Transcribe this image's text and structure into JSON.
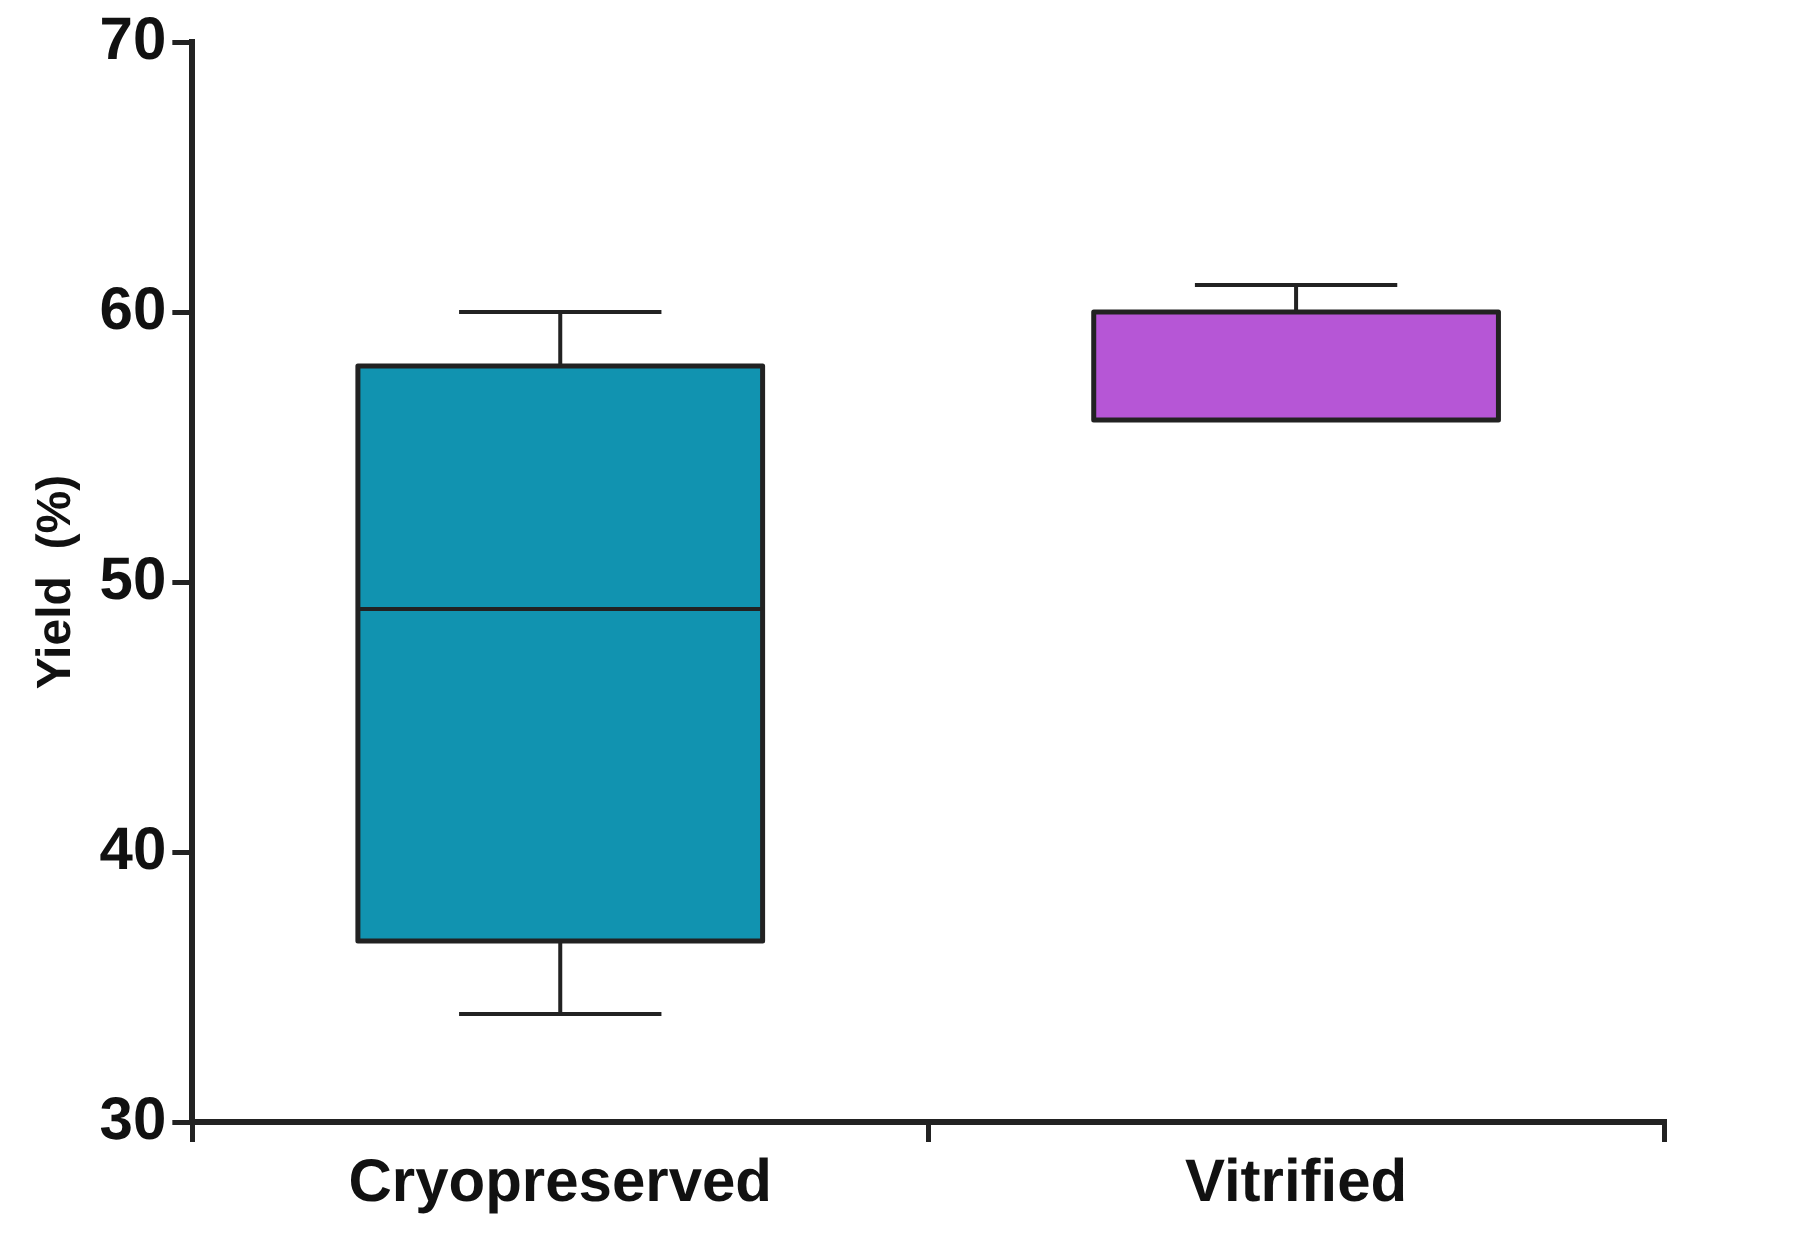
{
  "chart_data": {
    "type": "box",
    "ylabel": "Yield  (%)",
    "categories": [
      "Cryopreserved",
      "Vitrified"
    ],
    "boxes": [
      {
        "low": 34,
        "q1": 36.7,
        "median": 49,
        "q3": 58,
        "high": 60
      },
      {
        "low": 56,
        "q1": 56,
        "median": 56,
        "q3": 60,
        "high": 61
      }
    ],
    "colors": [
      "#1193b0",
      "#b656d6"
    ],
    "ylim": [
      30,
      70
    ],
    "yticks": [
      30,
      40,
      50,
      60,
      70
    ],
    "grid": false,
    "legend": false
  }
}
